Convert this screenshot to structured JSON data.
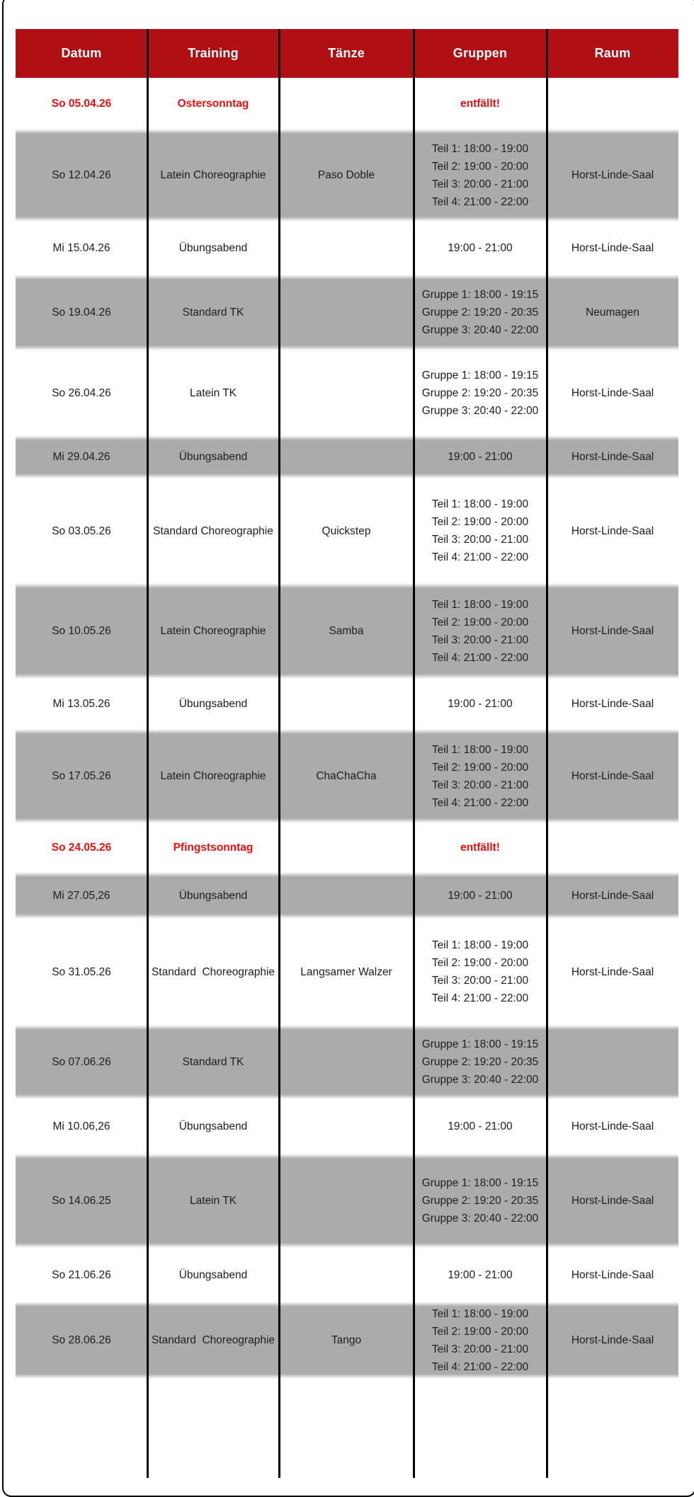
{
  "colors": {
    "header_bg": "#B01014",
    "holiday_red": "#F20D0D",
    "row_gray": "#ABABAB"
  },
  "table": {
    "columns": [
      {
        "key": "datum",
        "label": "Datum"
      },
      {
        "key": "training",
        "label": "Training"
      },
      {
        "key": "taenze",
        "label": "Tänze"
      },
      {
        "key": "gruppen",
        "label": "Gruppen"
      },
      {
        "key": "raum",
        "label": "Raum"
      }
    ],
    "rows": [
      {
        "variant": "holiday",
        "datum": "So 05.04.26",
        "training": "Ostersonntag",
        "taenze": "",
        "gruppen": [
          "entfällt!"
        ],
        "raum": ""
      },
      {
        "variant": "shaded",
        "datum": "So 12.04.26",
        "training": "Latein Choreographie",
        "taenze": "Paso Doble",
        "gruppen": [
          "Teil 1: 18:00 - 19:00",
          "Teil 2: 19:00 - 20:00",
          "Teil 3: 20:00 - 21:00",
          "Teil 4: 21:00 - 22:00"
        ],
        "raum": "Horst-Linde-Saal"
      },
      {
        "variant": "plain",
        "datum": "Mi 15.04.26",
        "training": "Übungsabend",
        "taenze": "",
        "gruppen": [
          "19:00 - 21:00"
        ],
        "raum": "Horst-Linde-Saal"
      },
      {
        "variant": "shaded",
        "datum": "So 19.04.26",
        "training": "Standard TK",
        "taenze": "",
        "gruppen": [
          "Gruppe 1: 18:00 - 19:15",
          "Gruppe 2: 19:20 - 20:35",
          "Gruppe 3: 20:40 - 22:00"
        ],
        "raum": "Neumagen"
      },
      {
        "variant": "plain",
        "datum": "So 26.04.26",
        "training": "Latein TK",
        "taenze": "",
        "gruppen": [
          "Gruppe 1: 18:00 - 19:15",
          "Gruppe 2: 19:20 - 20:35",
          "Gruppe 3: 20:40 - 22:00"
        ],
        "raum": "Horst-Linde-Saal"
      },
      {
        "variant": "shaded",
        "datum": "Mi 29.04.26",
        "training": "Übungsabend",
        "taenze": "",
        "gruppen": [
          "19:00 - 21:00"
        ],
        "raum": "Horst-Linde-Saal"
      },
      {
        "variant": "plain",
        "datum": "So 03.05.26",
        "training": "Standard Choreographie",
        "taenze": "Quickstep",
        "gruppen": [
          "Teil 1: 18:00 - 19:00",
          "Teil 2: 19:00 - 20:00",
          "Teil 3: 20:00 - 21:00",
          "Teil 4: 21:00 - 22:00"
        ],
        "raum": "Horst-Linde-Saal"
      },
      {
        "variant": "shaded",
        "datum": "So 10.05.26",
        "training": "Latein Choreographie",
        "taenze": "Samba",
        "gruppen": [
          "Teil 1: 18:00 - 19:00",
          "Teil 2: 19:00 - 20:00",
          "Teil 3: 20:00 - 21:00",
          "Teil 4: 21:00 - 22:00"
        ],
        "raum": "Horst-Linde-Saal"
      },
      {
        "variant": "plain",
        "datum": "Mi 13.05.26",
        "training": "Übungsabend",
        "taenze": "",
        "gruppen": [
          "19:00 - 21:00"
        ],
        "raum": "Horst-Linde-Saal"
      },
      {
        "variant": "shaded",
        "datum": "So 17.05.26",
        "training": "Latein Choreographie",
        "taenze": "ChaChaCha",
        "gruppen": [
          "Teil 1: 18:00 - 19:00",
          "Teil 2: 19:00 - 20:00",
          "Teil 3: 20:00 - 21:00",
          "Teil 4: 21:00 - 22:00"
        ],
        "raum": "Horst-Linde-Saal"
      },
      {
        "variant": "holiday",
        "datum": "So 24.05.26",
        "training": "Pfingstsonntag",
        "taenze": "",
        "gruppen": [
          "entfällt!"
        ],
        "raum": ""
      },
      {
        "variant": "shaded",
        "datum": "Mi 27.05,26",
        "training": "Übungsabend",
        "taenze": "",
        "gruppen": [
          "19:00 - 21:00"
        ],
        "raum": "Horst-Linde-Saal"
      },
      {
        "variant": "plain",
        "datum": "So 31.05.26",
        "training": "Standard  Choreographie",
        "taenze": "Langsamer Walzer",
        "gruppen": [
          "Teil 1: 18:00 - 19:00",
          "Teil 2: 19:00 - 20:00",
          "Teil 3: 20:00 - 21:00",
          "Teil 4: 21:00 - 22:00"
        ],
        "raum": "Horst-Linde-Saal"
      },
      {
        "variant": "shaded",
        "datum": "So 07.06.26",
        "training": "Standard TK",
        "taenze": "",
        "gruppen": [
          "Gruppe 1: 18:00 - 19:15",
          "Gruppe 2: 19:20 - 20:35",
          "Gruppe 3: 20:40 - 22:00"
        ],
        "raum": ""
      },
      {
        "variant": "plain",
        "datum": "Mi 10.06,26",
        "training": "Übungsabend",
        "taenze": "",
        "gruppen": [
          "19:00 - 21:00"
        ],
        "raum": "Horst-Linde-Saal"
      },
      {
        "variant": "shaded",
        "datum": "So 14.06.25",
        "training": "Latein TK",
        "taenze": "",
        "gruppen": [
          "Gruppe 1: 18:00 - 19:15",
          "Gruppe 2: 19:20 - 20:35",
          "Gruppe 3: 20:40 - 22:00"
        ],
        "raum": "Horst-Linde-Saal"
      },
      {
        "variant": "plain",
        "datum": "So 21.06.26",
        "training": "Übungsabend",
        "taenze": "",
        "gruppen": [
          "19:00 - 21:00"
        ],
        "raum": "Horst-Linde-Saal"
      },
      {
        "variant": "shaded",
        "datum": "So 28.06.26",
        "training": "Standard  Choreographie",
        "taenze": "Tango",
        "gruppen": [
          "Teil 1: 18:00 - 19:00",
          "Teil 2: 19:00 - 20:00",
          "Teil 3: 20:00 - 21:00",
          "Teil 4: 21:00 - 22:00"
        ],
        "raum": "Horst-Linde-Saal"
      }
    ]
  }
}
